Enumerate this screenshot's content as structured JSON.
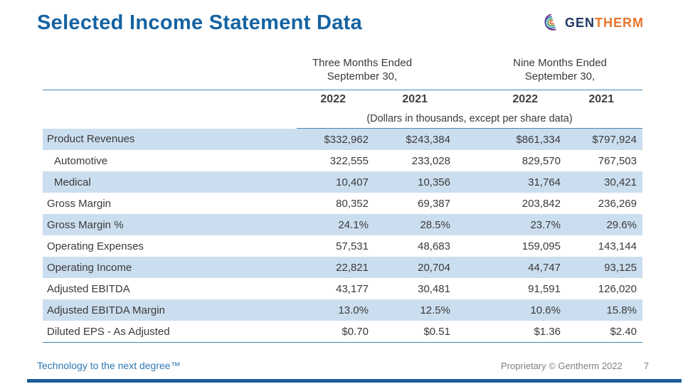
{
  "colors": {
    "title-blue": "#1563a2",
    "rule-blue": "#4a86b4",
    "row-shade": "#cbdeef",
    "text-dark": "#3a3a3a",
    "footer-blue": "#2e79b5",
    "footer-gray": "#7f7f7f",
    "logo-navy": "#1f3864",
    "logo-orange": "#e8762c",
    "bottom-bar": "#1f5c99"
  },
  "header": {
    "title": "Selected Income Statement Data",
    "logo_text_1": "GEN",
    "logo_text_2": "THERM"
  },
  "table": {
    "group_headers": [
      "Three Months Ended\nSeptember 30,",
      "Nine Months Ended\nSeptember 30,"
    ],
    "year_headers": [
      "2022",
      "2021",
      "2022",
      "2021"
    ],
    "units_note": "(Dollars in thousands, except per share data)",
    "rows": [
      {
        "label": "Product Revenues",
        "indent": false,
        "shaded": true,
        "values": [
          "$332,962",
          "$243,384",
          "$861,334",
          "$797,924"
        ]
      },
      {
        "label": "Automotive",
        "indent": true,
        "shaded": false,
        "values": [
          "322,555",
          "233,028",
          "829,570",
          "767,503"
        ]
      },
      {
        "label": "Medical",
        "indent": true,
        "shaded": true,
        "values": [
          "10,407",
          "10,356",
          "31,764",
          "30,421"
        ]
      },
      {
        "label": "Gross Margin",
        "indent": false,
        "shaded": false,
        "values": [
          "80,352",
          "69,387",
          "203,842",
          "236,269"
        ]
      },
      {
        "label": "Gross Margin %",
        "indent": false,
        "shaded": true,
        "values": [
          "24.1%",
          "28.5%",
          "23.7%",
          "29.6%"
        ]
      },
      {
        "label": "Operating Expenses",
        "indent": false,
        "shaded": false,
        "values": [
          "57,531",
          "48,683",
          "159,095",
          "143,144"
        ]
      },
      {
        "label": "Operating Income",
        "indent": false,
        "shaded": true,
        "values": [
          "22,821",
          "20,704",
          "44,747",
          "93,125"
        ]
      },
      {
        "label": "Adjusted EBITDA",
        "indent": false,
        "shaded": false,
        "values": [
          "43,177",
          "30,481",
          "91,591",
          "126,020"
        ]
      },
      {
        "label": "Adjusted EBITDA Margin",
        "indent": false,
        "shaded": true,
        "values": [
          "13.0%",
          "12.5%",
          "10.6%",
          "15.8%"
        ]
      },
      {
        "label": "Diluted EPS - As Adjusted",
        "indent": false,
        "shaded": false,
        "values": [
          "$0.70",
          "$0.51",
          "$1.36",
          "$2.40"
        ]
      }
    ]
  },
  "footer": {
    "tagline": "Technology to the next degree™",
    "proprietary": "Proprietary © Gentherm 2022",
    "page_number": "7"
  }
}
